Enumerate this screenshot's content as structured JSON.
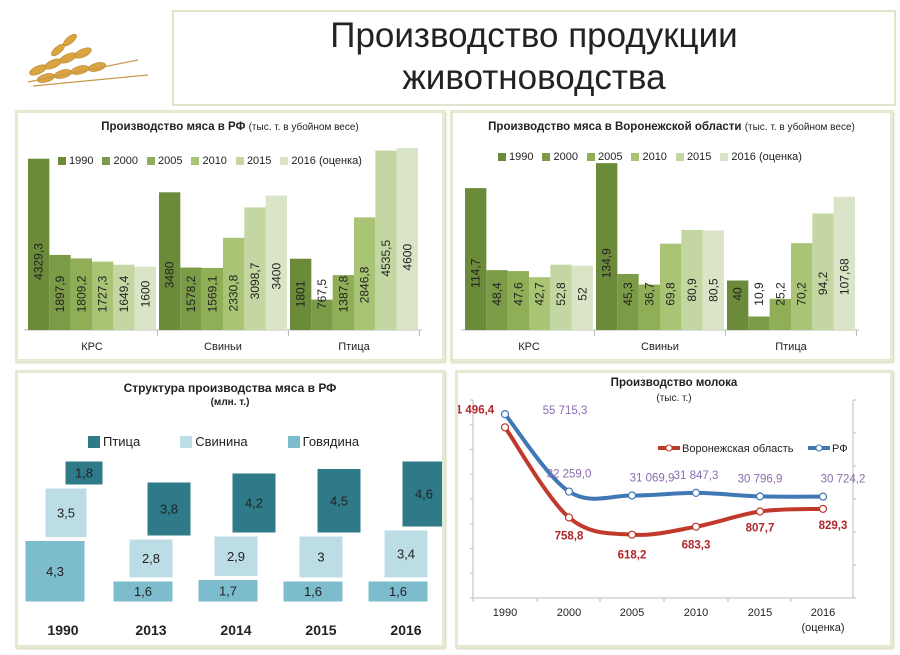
{
  "header": {
    "title_line1": "Производство продукции",
    "title_line2": "животноводства"
  },
  "chart_data": [
    {
      "id": "meat_rf",
      "type": "bar",
      "title": "Производство мяса в РФ",
      "subtitle": "(тыс. т. в убойном весе)",
      "categories": [
        "КРС",
        "Свиньи",
        "Птица"
      ],
      "ylim": [
        0,
        4600
      ],
      "series": [
        {
          "name": "1990",
          "color": "#6b8a3a",
          "values": [
            4329.3,
            3480,
            1801
          ]
        },
        {
          "name": "2000",
          "color": "#7b9b46",
          "values": [
            1897.9,
            1578.2,
            767.5
          ]
        },
        {
          "name": "2005",
          "color": "#8fae55",
          "values": [
            1809.2,
            1569.1,
            1387.8
          ]
        },
        {
          "name": "2010",
          "color": "#a9c474",
          "values": [
            1727.3,
            2330.8,
            2846.8
          ]
        },
        {
          "name": "2015",
          "color": "#c4d7a2",
          "values": [
            1649.4,
            3098.7,
            4535.5
          ]
        },
        {
          "name": "2016 (оценка)",
          "color": "#d9e5c6",
          "values": [
            1600,
            3400,
            4600
          ]
        }
      ]
    },
    {
      "id": "meat_vrn",
      "type": "bar",
      "title": "Производство мяса в Воронежской области",
      "subtitle": "(тыс. т. в убойном весе)",
      "categories": [
        "КРС",
        "Свиньи",
        "Птица"
      ],
      "ylim": [
        0,
        135
      ],
      "series": [
        {
          "name": "1990",
          "color": "#6b8a3a",
          "values": [
            114.7,
            134.9,
            40
          ]
        },
        {
          "name": "2000",
          "color": "#7b9b46",
          "values": [
            48.4,
            45.3,
            10.9
          ]
        },
        {
          "name": "2005",
          "color": "#8fae55",
          "values": [
            47.6,
            36.7,
            25.2
          ]
        },
        {
          "name": "2010",
          "color": "#a9c474",
          "values": [
            42.7,
            69.8,
            70.2
          ]
        },
        {
          "name": "2015",
          "color": "#c4d7a2",
          "values": [
            52.8,
            80.9,
            94.2
          ]
        },
        {
          "name": "2016 (оценка)",
          "color": "#d9e5c6",
          "values": [
            52,
            80.5,
            107.68
          ]
        }
      ]
    },
    {
      "id": "meat_structure",
      "type": "bar",
      "stacked": true,
      "title": "Структура производства мяса в РФ",
      "subtitle": "(млн. т.)",
      "categories": [
        "1990",
        "2013",
        "2014",
        "2015",
        "2016"
      ],
      "series": [
        {
          "name": "Говядина",
          "color": "#7dbccc",
          "values": [
            4.3,
            1.6,
            1.7,
            1.6,
            1.6
          ]
        },
        {
          "name": "Свинина",
          "color": "#bcdde6",
          "values": [
            3.5,
            2.8,
            2.9,
            3.0,
            3.4
          ]
        },
        {
          "name": "Птица",
          "color": "#2f7a89",
          "values": [
            1.8,
            3.8,
            4.2,
            4.5,
            4.6
          ]
        }
      ],
      "legend_order": [
        "Птица",
        "Свинина",
        "Говядина"
      ]
    },
    {
      "id": "milk",
      "type": "line",
      "title": "Производство молока",
      "subtitle": "(тыс. т.)",
      "x": [
        "1990",
        "2000",
        "2005",
        "2010",
        "2015",
        "2016"
      ],
      "x_note": "(оценка)",
      "series": [
        {
          "name": "Воронежская область",
          "color": "#c0392b",
          "label_color": "#b0262a",
          "ylim": [
            100,
            1720
          ],
          "values": [
            1496.4,
            758.8,
            618.2,
            683.3,
            807.7,
            829.3
          ]
        },
        {
          "name": "РФ",
          "color": "#3f78b5",
          "label_color": "#8a6bb0",
          "ylim": [
            0,
            60000
          ],
          "values": [
            55715.3,
            32259.0,
            31069.9,
            31847.3,
            30796.9,
            30724.2
          ]
        }
      ]
    }
  ]
}
